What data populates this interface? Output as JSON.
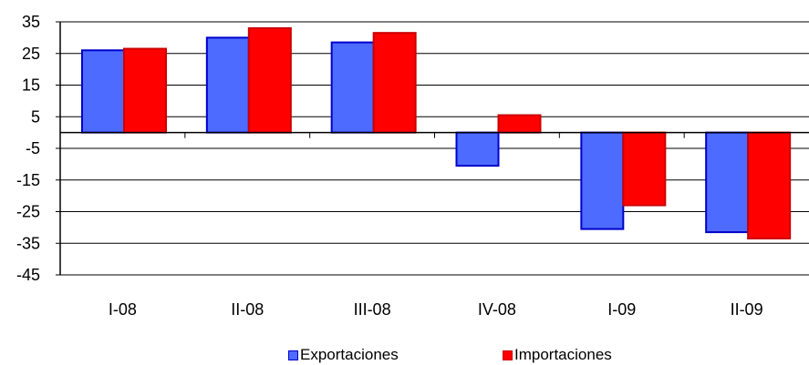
{
  "chart_data": {
    "type": "bar",
    "categories": [
      "I-08",
      "II-08",
      "III-08",
      "IV-08",
      "I-09",
      "II-09"
    ],
    "series": [
      {
        "name": "Exportaciones",
        "values": [
          26,
          30,
          28.5,
          -10.5,
          -30.5,
          -31.5
        ],
        "color": "#4D6BFF",
        "border": "#0000CC"
      },
      {
        "name": "Importaciones",
        "values": [
          26.5,
          33,
          31.5,
          5.5,
          -23,
          -33.5
        ],
        "color": "#FF0000",
        "border": "#CC0000"
      }
    ],
    "yticks": [
      35,
      25,
      15,
      5,
      -5,
      -15,
      -25,
      -35,
      -45
    ],
    "ylim": [
      -45,
      35
    ],
    "grid": true,
    "legend_position": "bottom"
  }
}
